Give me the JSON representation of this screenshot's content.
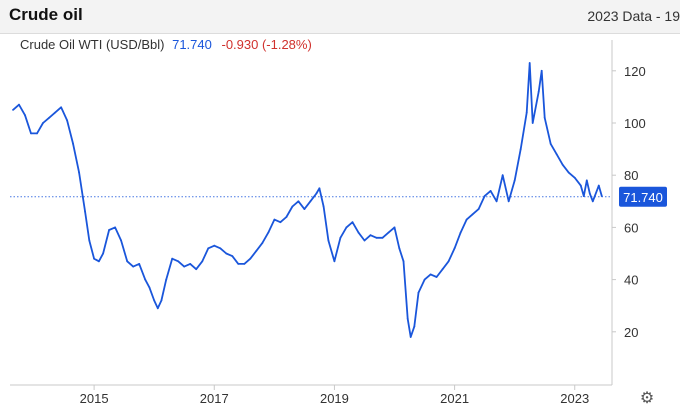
{
  "header": {
    "title": "Crude oil",
    "data_label": "2023 Data - 19"
  },
  "legend": {
    "name": "Crude Oil WTI (USD/Bbl)",
    "price": "71.740",
    "change": "-0.930 (-1.28%)"
  },
  "colors": {
    "line": "#1a56db",
    "change_negative": "#d0312d",
    "price_tag_bg": "#1a56db"
  },
  "chart_data": {
    "type": "line",
    "series": [
      {
        "name": "Crude Oil WTI (USD/Bbl)",
        "x": [
          2013.65,
          2013.75,
          2013.85,
          2013.95,
          2014.05,
          2014.15,
          2014.25,
          2014.35,
          2014.45,
          2014.55,
          2014.65,
          2014.75,
          2014.85,
          2014.92,
          2015.0,
          2015.08,
          2015.15,
          2015.25,
          2015.35,
          2015.45,
          2015.55,
          2015.65,
          2015.75,
          2015.85,
          2015.92,
          2016.0,
          2016.06,
          2016.12,
          2016.2,
          2016.3,
          2016.4,
          2016.5,
          2016.6,
          2016.7,
          2016.8,
          2016.9,
          2017.0,
          2017.1,
          2017.2,
          2017.3,
          2017.4,
          2017.5,
          2017.6,
          2017.7,
          2017.8,
          2017.9,
          2018.0,
          2018.1,
          2018.2,
          2018.3,
          2018.4,
          2018.5,
          2018.6,
          2018.7,
          2018.75,
          2018.82,
          2018.9,
          2019.0,
          2019.1,
          2019.2,
          2019.3,
          2019.4,
          2019.5,
          2019.6,
          2019.7,
          2019.8,
          2019.9,
          2020.0,
          2020.08,
          2020.15,
          2020.22,
          2020.27,
          2020.33,
          2020.4,
          2020.5,
          2020.6,
          2020.7,
          2020.8,
          2020.9,
          2021.0,
          2021.1,
          2021.2,
          2021.3,
          2021.4,
          2021.5,
          2021.6,
          2021.7,
          2021.8,
          2021.9,
          2022.0,
          2022.1,
          2022.2,
          2022.25,
          2022.3,
          2022.4,
          2022.45,
          2022.5,
          2022.6,
          2022.7,
          2022.8,
          2022.9,
          2023.0,
          2023.1,
          2023.15,
          2023.2,
          2023.25,
          2023.3,
          2023.4,
          2023.45
        ],
        "y": [
          105,
          107,
          103,
          96,
          96,
          100,
          102,
          104,
          106,
          101,
          92,
          81,
          66,
          55,
          48,
          47,
          50,
          59,
          60,
          55,
          47,
          45,
          46,
          40,
          37,
          32,
          29,
          32,
          40,
          48,
          47,
          45,
          46,
          44,
          47,
          52,
          53,
          52,
          50,
          49,
          46,
          46,
          48,
          51,
          54,
          58,
          63,
          62,
          64,
          68,
          70,
          67,
          70,
          73,
          75,
          68,
          55,
          47,
          56,
          60,
          62,
          58,
          55,
          57,
          56,
          56,
          58,
          60,
          52,
          47,
          25,
          18,
          22,
          35,
          40,
          42,
          41,
          44,
          47,
          52,
          58,
          63,
          65,
          67,
          72,
          74,
          70,
          80,
          70,
          78,
          90,
          104,
          123,
          100,
          112,
          120,
          102,
          92,
          88,
          84,
          81,
          79,
          76,
          72,
          78,
          73,
          70,
          76,
          72
        ]
      }
    ],
    "last_value": 71.74,
    "xlim": [
      2013.6,
      2023.62
    ],
    "ylim": [
      0,
      132
    ],
    "x_ticks": [
      2015,
      2017,
      2019,
      2021,
      2023
    ],
    "x_tick_labels": [
      "2015",
      "2017",
      "2019",
      "2021",
      "2023"
    ],
    "y_ticks": [
      20,
      40,
      60,
      80,
      100,
      120
    ],
    "y_tick_labels": [
      "20",
      "40",
      "60",
      "80",
      "100",
      "120"
    ],
    "grid": false,
    "y_axis_side": "right",
    "price_line": "dotted"
  }
}
